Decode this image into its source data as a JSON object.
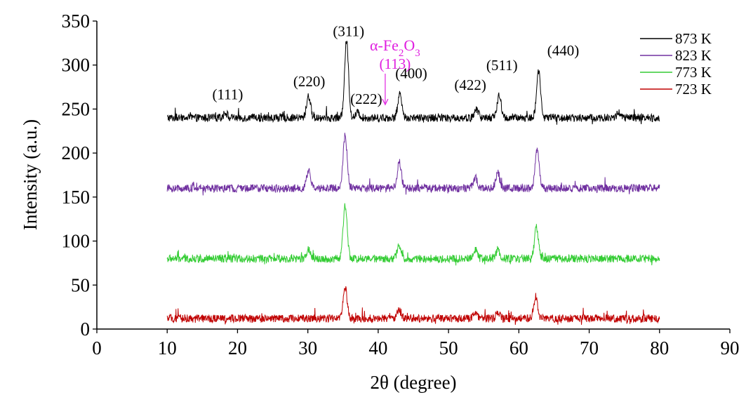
{
  "chart_data": {
    "type": "line",
    "xlabel": "2θ (degree)",
    "ylabel": "Intensity (a.u.)",
    "xlim": [
      0,
      90
    ],
    "ylim": [
      0,
      350
    ],
    "x_ticks": [
      "0",
      "10",
      "20",
      "30",
      "40",
      "50",
      "60",
      "70",
      "80",
      "90"
    ],
    "y_ticks": [
      "0",
      "50",
      "100",
      "150",
      "200",
      "250",
      "300",
      "350"
    ],
    "grid": false,
    "legend_position": "top-right",
    "series": [
      {
        "name": "873 K",
        "color": "#000000",
        "baseline": 240,
        "peaks": [
          [
            18.3,
            6
          ],
          [
            30.1,
            25
          ],
          [
            35.5,
            88
          ],
          [
            37.1,
            6
          ],
          [
            43.1,
            28
          ],
          [
            54.0,
            10
          ],
          [
            57.2,
            25
          ],
          [
            62.8,
            54
          ],
          [
            74.2,
            6
          ]
        ]
      },
      {
        "name": "823 K",
        "color": "#7030a0",
        "baseline": 160,
        "peaks": [
          [
            30.1,
            20
          ],
          [
            35.3,
            60
          ],
          [
            43.0,
            30
          ],
          [
            53.8,
            12
          ],
          [
            57.0,
            18
          ],
          [
            62.6,
            45
          ]
        ]
      },
      {
        "name": "773 K",
        "color": "#33cc33",
        "baseline": 80,
        "peaks": [
          [
            30.1,
            10
          ],
          [
            35.3,
            60
          ],
          [
            43.0,
            15
          ],
          [
            53.8,
            10
          ],
          [
            57.0,
            10
          ],
          [
            62.5,
            35
          ]
        ]
      },
      {
        "name": "723 K",
        "color": "#c00000",
        "baseline": 12,
        "peaks": [
          [
            35.3,
            35
          ],
          [
            43.0,
            10
          ],
          [
            53.8,
            8
          ],
          [
            57.0,
            6
          ],
          [
            62.4,
            25
          ]
        ]
      }
    ],
    "annotations": [
      {
        "text": "(111)",
        "x": 18.6,
        "y": 261
      },
      {
        "text": "(220)",
        "x": 30.2,
        "y": 276
      },
      {
        "text": "(311)",
        "x": 35.8,
        "y": 333
      },
      {
        "text": "(222)",
        "x": 38.3,
        "y": 256
      },
      {
        "text": "(400)",
        "x": 44.7,
        "y": 285
      },
      {
        "text": "(422)",
        "x": 53.1,
        "y": 272
      },
      {
        "text": "(511)",
        "x": 57.6,
        "y": 294
      },
      {
        "text": "(440)",
        "x": 66.3,
        "y": 311
      }
    ],
    "phase_annotation": {
      "formula_parts": [
        "α-Fe",
        "2",
        "O",
        "3"
      ],
      "label": "(113)",
      "color": "#e020e0",
      "x": 41.0,
      "y": 255
    }
  }
}
